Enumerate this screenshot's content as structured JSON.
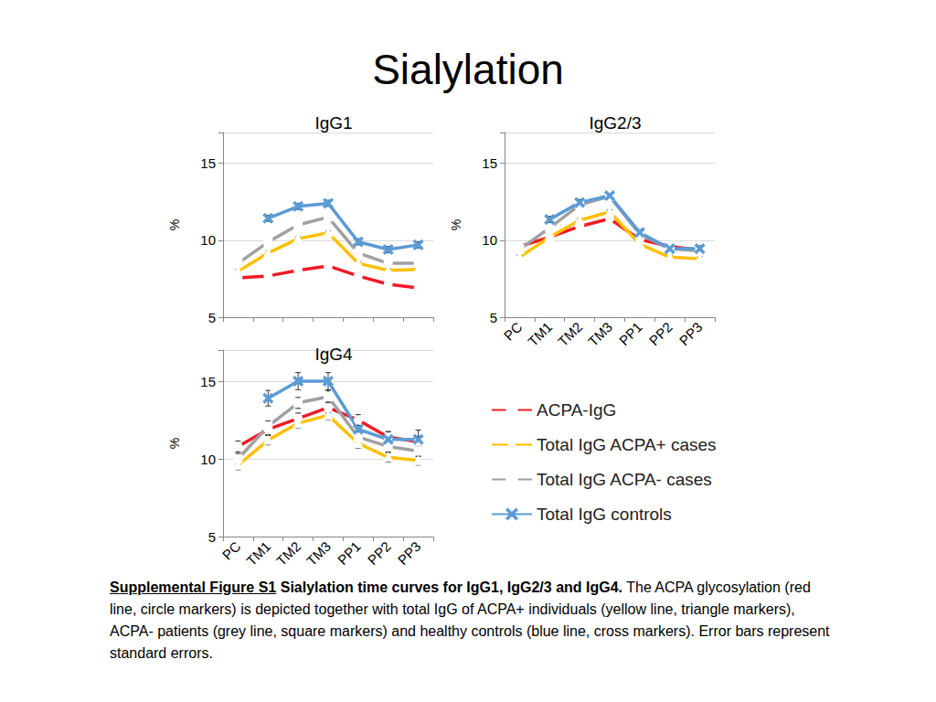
{
  "title": "Sialylation",
  "chart_data": [
    {
      "type": "line",
      "title": "IgG1",
      "y_label": "%",
      "categories": [
        "PC",
        "TM1",
        "TM2",
        "TM3",
        "PP1",
        "PP2",
        "PP3"
      ],
      "ylim": [
        5,
        17
      ],
      "yticks": [
        5,
        10,
        15
      ],
      "grid": true,
      "tick_labels": "y",
      "series": [
        {
          "name": "ACPA-IgG",
          "color": "#ee1c25",
          "marker": "circle",
          "values": [
            7.56,
            7.68,
            8.04,
            8.33,
            7.68,
            7.14,
            6.9
          ],
          "errors": [
            0.15,
            0.15,
            0.15,
            0.15,
            0.15,
            0.15,
            0.15
          ]
        },
        {
          "name": "Total IgG ACPA+ cases",
          "color": "#ffc000",
          "marker": "triangle",
          "values": [
            7.98,
            9.17,
            10.1,
            10.48,
            8.5,
            8.04,
            8.1
          ],
          "errors": [
            0.12,
            0.12,
            0.12,
            0.12,
            0.12,
            0.12,
            0.12
          ]
        },
        {
          "name": "Total IgG ACPA- cases",
          "color": "#a0a0a0",
          "marker": "square",
          "values": [
            8.5,
            9.88,
            11.0,
            11.5,
            9.17,
            8.5,
            8.5
          ],
          "errors": [
            0.12,
            0.12,
            0.12,
            0.15,
            0.12,
            0.12,
            0.12
          ]
        },
        {
          "name": "Total IgG controls",
          "color": "#5b9bd5",
          "marker": "cross",
          "values": [
            null,
            11.43,
            12.2,
            12.4,
            9.9,
            9.4,
            9.7
          ],
          "errors": [
            null,
            0.2,
            0.2,
            0.2,
            0.2,
            0.2,
            0.2
          ]
        }
      ]
    },
    {
      "type": "line",
      "title": "IgG2/3",
      "y_label": "%",
      "categories": [
        "PC",
        "TM1",
        "TM2",
        "TM3",
        "PP1",
        "PP2",
        "PP3"
      ],
      "ylim": [
        5,
        17
      ],
      "yticks": [
        5,
        10,
        15
      ],
      "grid": true,
      "series": [
        {
          "name": "ACPA-IgG",
          "color": "#ee1c25",
          "marker": "circle",
          "values": [
            9.6,
            10.2,
            10.9,
            11.4,
            10.05,
            9.6,
            9.35
          ],
          "errors": [
            0.15,
            0.15,
            0.15,
            0.15,
            0.15,
            0.15,
            0.15
          ]
        },
        {
          "name": "Total IgG ACPA+ cases",
          "color": "#ffc000",
          "marker": "triangle",
          "values": [
            8.9,
            10.2,
            11.3,
            11.85,
            9.75,
            8.9,
            8.8
          ],
          "errors": [
            0.12,
            0.12,
            0.12,
            0.12,
            0.12,
            0.12,
            0.12
          ]
        },
        {
          "name": "Total IgG ACPA- cases",
          "color": "#a0a0a0",
          "marker": "square",
          "values": [
            9.4,
            10.8,
            12.3,
            12.85,
            10.4,
            9.45,
            9.3
          ],
          "errors": [
            0.15,
            0.15,
            0.15,
            0.15,
            0.15,
            0.15,
            0.15
          ]
        },
        {
          "name": "Total IgG controls",
          "color": "#5b9bd5",
          "marker": "cross",
          "values": [
            null,
            11.35,
            12.45,
            12.9,
            10.5,
            9.45,
            9.45
          ],
          "errors": [
            null,
            0.2,
            0.2,
            0.2,
            0.2,
            0.2,
            0.2
          ]
        }
      ]
    },
    {
      "type": "line",
      "title": "IgG4",
      "y_label": "%",
      "categories": [
        "PC",
        "TM1",
        "TM2",
        "TM3",
        "PP1",
        "PP2",
        "PP3"
      ],
      "ylim": [
        5,
        17
      ],
      "yticks": [
        5,
        10,
        15
      ],
      "grid": true,
      "series": [
        {
          "name": "ACPA-IgG",
          "color": "#ee1c25",
          "marker": "circle",
          "values": [
            10.8,
            11.9,
            12.6,
            13.3,
            12.5,
            11.4,
            11.1
          ],
          "errors": [
            0.35,
            0.35,
            0.35,
            0.35,
            0.35,
            0.35,
            0.35
          ]
        },
        {
          "name": "Total IgG ACPA+ cases",
          "color": "#ffc000",
          "marker": "triangle",
          "values": [
            9.6,
            11.2,
            12.3,
            12.8,
            11.0,
            10.1,
            9.9
          ],
          "errors": [
            0.3,
            0.3,
            0.3,
            0.3,
            0.3,
            0.3,
            0.3
          ]
        },
        {
          "name": "Total IgG ACPA- cases",
          "color": "#a0a0a0",
          "marker": "square",
          "values": [
            10.0,
            12.1,
            13.6,
            14.0,
            11.4,
            10.8,
            10.5
          ],
          "errors": [
            0.35,
            0.35,
            0.35,
            0.4,
            0.35,
            0.35,
            0.35
          ]
        },
        {
          "name": "Total IgG controls",
          "color": "#5b9bd5",
          "marker": "cross",
          "values": [
            null,
            13.9,
            15.0,
            15.0,
            11.9,
            11.25,
            11.25
          ],
          "errors": [
            null,
            0.5,
            0.55,
            0.55,
            0.45,
            0.5,
            0.6
          ]
        }
      ]
    }
  ],
  "caption": {
    "label": "Supplemental Figure S1",
    "heading": "Sialylation time curves for IgG1, IgG2/3 and IgG4.",
    "text": "The ACPA glycosylation (red line, circle markers) is depicted together with total IgG of ACPA+ individuals (yellow line, triangle markers), ACPA- patients (grey line, square markers) and healthy controls (blue line, cross markers). Error bars represent standard errors."
  }
}
